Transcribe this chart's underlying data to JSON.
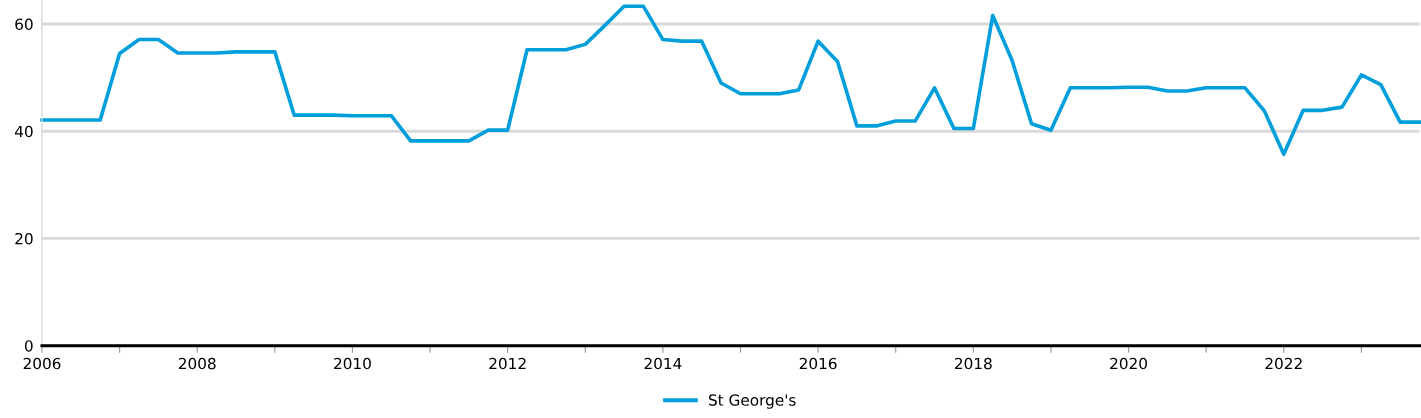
{
  "chart_data": {
    "type": "line",
    "x": [
      2006.0,
      2006.25,
      2006.5,
      2006.75,
      2007.0,
      2007.25,
      2007.5,
      2007.75,
      2008.0,
      2008.25,
      2008.5,
      2008.75,
      2009.0,
      2009.25,
      2009.5,
      2009.75,
      2010.0,
      2010.25,
      2010.5,
      2010.75,
      2011.0,
      2011.25,
      2011.5,
      2011.75,
      2012.0,
      2012.25,
      2012.5,
      2012.75,
      2013.0,
      2013.25,
      2013.5,
      2013.75,
      2014.0,
      2014.25,
      2014.5,
      2014.75,
      2015.0,
      2015.25,
      2015.5,
      2015.75,
      2016.0,
      2016.25,
      2016.5,
      2016.75,
      2017.0,
      2017.25,
      2017.5,
      2017.75,
      2018.0,
      2018.25,
      2018.5,
      2018.75,
      2019.0,
      2019.25,
      2019.5,
      2019.75,
      2020.0,
      2020.25,
      2020.5,
      2020.75,
      2021.0,
      2021.25,
      2021.5,
      2021.75,
      2022.0,
      2022.25,
      2022.5,
      2022.75,
      2023.0,
      2023.25,
      2023.5,
      2023.75
    ],
    "series": [
      {
        "name": "St George's",
        "color": "#009fdb",
        "values": [
          42.1,
          42.1,
          42.1,
          42.1,
          54.5,
          57.1,
          57.1,
          54.6,
          54.6,
          54.6,
          54.8,
          54.8,
          54.8,
          43.0,
          43.0,
          43.0,
          42.9,
          42.9,
          42.9,
          38.2,
          38.2,
          38.2,
          38.2,
          40.2,
          40.2,
          55.2,
          55.2,
          55.2,
          56.2,
          59.7,
          63.3,
          63.3,
          57.1,
          56.8,
          56.8,
          49.0,
          47.0,
          47.0,
          47.0,
          47.7,
          56.8,
          53.0,
          41.0,
          41.0,
          41.9,
          41.9,
          48.1,
          40.5,
          40.5,
          61.6,
          53.2,
          41.4,
          40.2,
          48.1,
          48.1,
          48.1,
          48.2,
          48.2,
          47.5,
          47.5,
          48.1,
          48.1,
          48.1,
          43.8,
          35.7,
          43.9,
          43.9,
          44.5,
          50.5,
          48.7,
          41.7,
          41.7
        ]
      }
    ],
    "xlim": [
      2006,
      2023.75
    ],
    "xticks": [
      2006,
      {
        "value": 2007,
        "label": null
      },
      2008,
      {
        "value": 2009,
        "label": null
      },
      2010,
      {
        "value": 2011,
        "label": null
      },
      2012,
      {
        "value": 2013,
        "label": null
      },
      2014,
      {
        "value": 2015,
        "label": null
      },
      2016,
      {
        "value": 2017,
        "label": null
      },
      2018,
      {
        "value": 2019,
        "label": null
      },
      2020,
      {
        "value": 2021,
        "label": null
      },
      2022,
      {
        "value": 2023,
        "label": null
      }
    ],
    "ylim": [
      0,
      64.4
    ],
    "yticks": [
      0,
      20,
      40,
      60
    ],
    "grid": "y",
    "legend": "bottom",
    "marker": "none",
    "line_style": "solid"
  }
}
